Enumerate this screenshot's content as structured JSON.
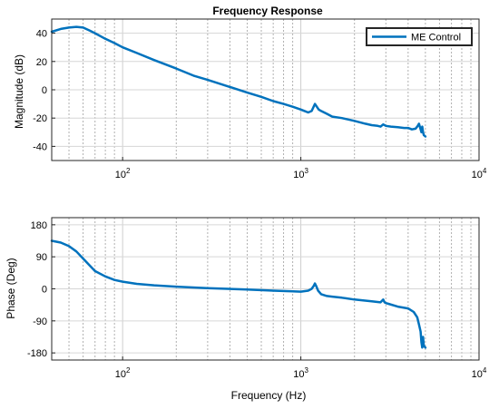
{
  "chart_data": [
    {
      "type": "line",
      "title": "Frequency Response",
      "xlabel": "",
      "ylabel": "Magnitude (dB)",
      "x_scale": "log",
      "xlim": [
        40,
        10000
      ],
      "ylim": [
        -50,
        50
      ],
      "y_ticks": [
        -40,
        -20,
        0,
        20,
        40
      ],
      "x_ticks": [
        100,
        1000,
        10000
      ],
      "x_tick_labels": [
        {
          "base": "10",
          "exp": "2"
        },
        {
          "base": "10",
          "exp": "3"
        },
        {
          "base": "10",
          "exp": "4"
        }
      ],
      "grid": true,
      "legend": {
        "placement": "top-right",
        "entries": [
          "ME Control"
        ]
      },
      "series": [
        {
          "name": "ME Control",
          "color": "#0072BD",
          "x": [
            40,
            45,
            50,
            55,
            60,
            65,
            70,
            80,
            90,
            100,
            120,
            150,
            200,
            250,
            300,
            400,
            500,
            600,
            700,
            800,
            900,
            1000,
            1050,
            1100,
            1150,
            1180,
            1200,
            1230,
            1260,
            1300,
            1400,
            1500,
            1700,
            2000,
            2300,
            2500,
            2700,
            2800,
            2900,
            3000,
            3200,
            3500,
            3800,
            4000,
            4200,
            4400,
            4500,
            4600,
            4700,
            4750,
            4800,
            4850,
            4900,
            5000
          ],
          "y": [
            41,
            43,
            44,
            44.5,
            44,
            42,
            40,
            36,
            33,
            30,
            26,
            21,
            15,
            10,
            7,
            2,
            -2,
            -5,
            -8,
            -10,
            -12,
            -14,
            -15,
            -16,
            -15,
            -12,
            -10,
            -12,
            -14,
            -15,
            -17,
            -19,
            -20,
            -22,
            -24,
            -25,
            -25.5,
            -26,
            -24.5,
            -25.5,
            -26,
            -26.5,
            -27,
            -27,
            -28,
            -27.5,
            -26,
            -24,
            -28,
            -30,
            -26,
            -30,
            -32,
            -33
          ]
        }
      ]
    },
    {
      "type": "line",
      "title": "",
      "xlabel": "Frequency (Hz)",
      "ylabel": "Phase (Deg)",
      "x_scale": "log",
      "xlim": [
        40,
        10000
      ],
      "ylim": [
        -200,
        200
      ],
      "y_ticks": [
        -180,
        -90,
        0,
        90,
        180
      ],
      "x_ticks": [
        100,
        1000,
        10000
      ],
      "x_tick_labels": [
        {
          "base": "10",
          "exp": "2"
        },
        {
          "base": "10",
          "exp": "3"
        },
        {
          "base": "10",
          "exp": "4"
        }
      ],
      "grid": true,
      "series": [
        {
          "name": "ME Control",
          "color": "#0072BD",
          "x": [
            40,
            45,
            50,
            55,
            60,
            70,
            80,
            90,
            100,
            120,
            150,
            200,
            300,
            500,
            700,
            900,
            1000,
            1100,
            1150,
            1180,
            1200,
            1220,
            1250,
            1300,
            1400,
            1500,
            1700,
            2000,
            2500,
            2800,
            2900,
            2950,
            3000,
            3100,
            3500,
            4000,
            4300,
            4500,
            4600,
            4700,
            4750,
            4800,
            4850,
            4900,
            5000
          ],
          "y": [
            135,
            130,
            120,
            105,
            85,
            50,
            35,
            25,
            20,
            14,
            10,
            6,
            2,
            -2,
            -5,
            -7,
            -8,
            -5,
            0,
            8,
            15,
            8,
            -5,
            -15,
            -20,
            -22,
            -25,
            -30,
            -35,
            -38,
            -30,
            -38,
            -40,
            -42,
            -50,
            -55,
            -65,
            -80,
            -100,
            -120,
            -150,
            -165,
            -135,
            -160,
            -165
          ]
        }
      ]
    }
  ]
}
